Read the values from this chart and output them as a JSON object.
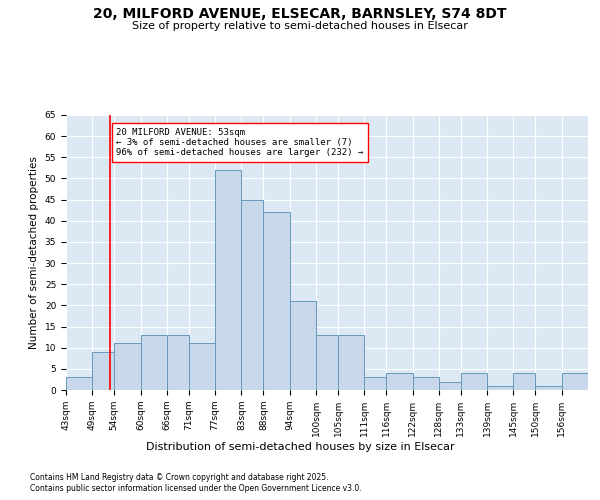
{
  "title": "20, MILFORD AVENUE, ELSECAR, BARNSLEY, S74 8DT",
  "subtitle": "Size of property relative to semi-detached houses in Elsecar",
  "xlabel": "Distribution of semi-detached houses by size in Elsecar",
  "ylabel": "Number of semi-detached properties",
  "bin_labels": [
    "43sqm",
    "49sqm",
    "54sqm",
    "60sqm",
    "66sqm",
    "71sqm",
    "77sqm",
    "83sqm",
    "88sqm",
    "94sqm",
    "100sqm",
    "105sqm",
    "111sqm",
    "116sqm",
    "122sqm",
    "128sqm",
    "133sqm",
    "139sqm",
    "145sqm",
    "150sqm",
    "156sqm"
  ],
  "bin_edges": [
    43,
    49,
    54,
    60,
    66,
    71,
    77,
    83,
    88,
    94,
    100,
    105,
    111,
    116,
    122,
    128,
    133,
    139,
    145,
    150,
    156
  ],
  "bar_heights": [
    3,
    9,
    11,
    13,
    13,
    11,
    52,
    45,
    42,
    21,
    13,
    13,
    3,
    4,
    3,
    2,
    4,
    1,
    4,
    1,
    4
  ],
  "bar_color": "#c8d8ea",
  "bar_edge_color": "#6699bb",
  "background_color": "#dce8f4",
  "fig_background_color": "#ffffff",
  "grid_color": "#ffffff",
  "red_line_x": 53,
  "annotation_title": "20 MILFORD AVENUE: 53sqm",
  "annotation_line1": "← 3% of semi-detached houses are smaller (7)",
  "annotation_line2": "96% of semi-detached houses are larger (232) →",
  "ylim": [
    0,
    65
  ],
  "yticks": [
    0,
    5,
    10,
    15,
    20,
    25,
    30,
    35,
    40,
    45,
    50,
    55,
    60,
    65
  ],
  "footer1": "Contains HM Land Registry data © Crown copyright and database right 2025.",
  "footer2": "Contains public sector information licensed under the Open Government Licence v3.0.",
  "title_fontsize": 10,
  "subtitle_fontsize": 8,
  "tick_fontsize": 6.5,
  "ylabel_fontsize": 7.5,
  "xlabel_fontsize": 8,
  "annotation_fontsize": 6.5,
  "footer_fontsize": 5.5
}
